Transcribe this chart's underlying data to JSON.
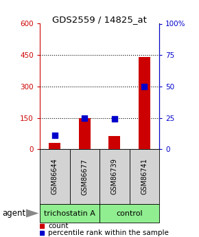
{
  "title": "GDS2559 / 14825_at",
  "samples": [
    "GSM86644",
    "GSM86677",
    "GSM86739",
    "GSM86741"
  ],
  "counts": [
    30,
    148,
    65,
    440
  ],
  "percentile_pct": [
    11,
    25,
    24,
    50
  ],
  "left_ylim": [
    0,
    600
  ],
  "right_ylim": [
    0,
    100
  ],
  "left_yticks": [
    0,
    150,
    300,
    450,
    600
  ],
  "right_yticks": [
    0,
    25,
    50,
    75,
    100
  ],
  "right_yticklabels": [
    "0",
    "25",
    "50",
    "75",
    "100%"
  ],
  "left_color": "#cc0000",
  "right_color": "#0000cc",
  "bar_color": "#cc0000",
  "dot_color": "#0000cc",
  "agent_label": "agent",
  "legend_count": "count",
  "legend_pct": "percentile rank within the sample",
  "group1_label": "trichostatin A",
  "group2_label": "control",
  "group_color": "#90EE90"
}
